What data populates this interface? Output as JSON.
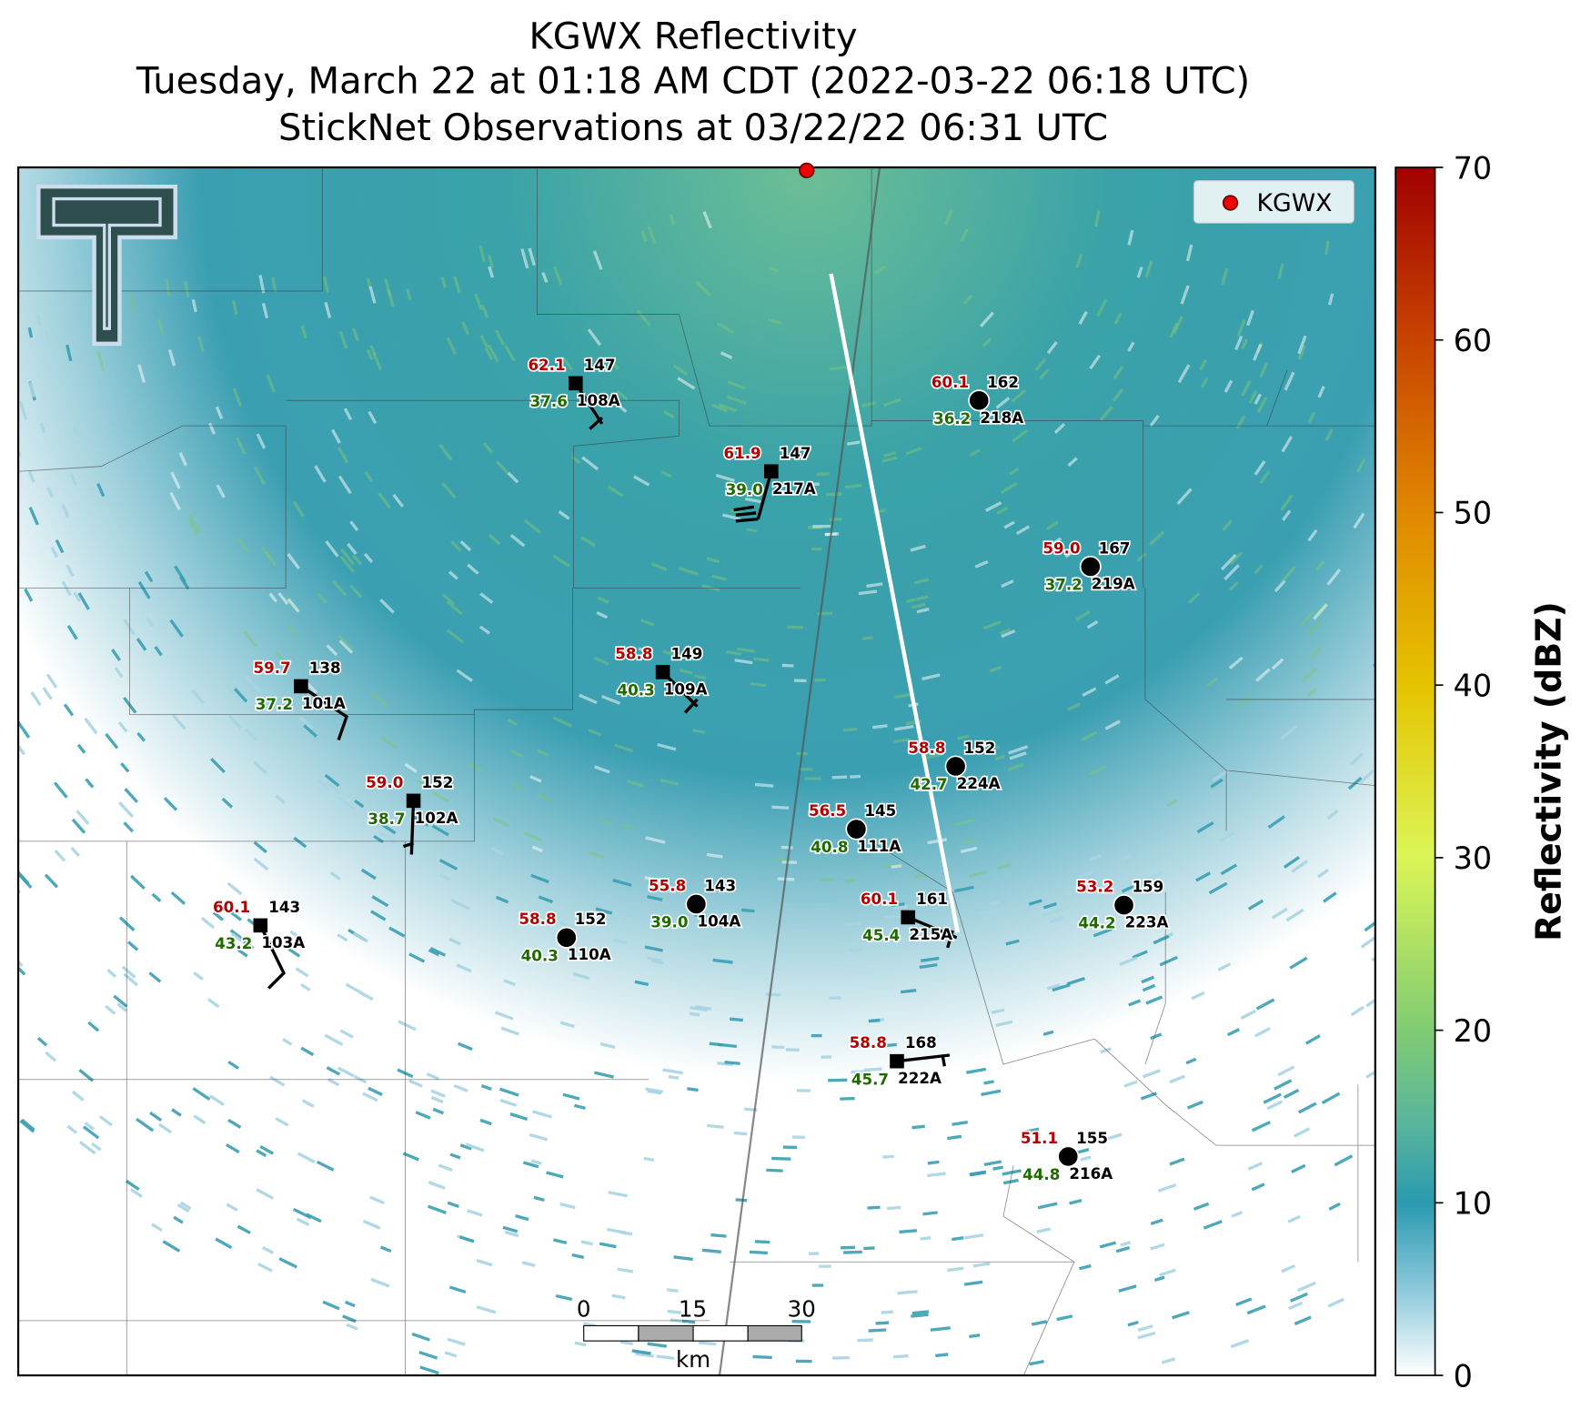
{
  "title_lines": [
    "KGWX Reflectivity",
    "Tuesday, March 22 at 01:18 AM CDT (2022-03-22 06:18 UTC)",
    "StickNet Observations at 03/22/22 06:31 UTC"
  ],
  "legend": "KGWX",
  "colorbar": {
    "label": "Reflectivity (dBZ)",
    "range": [
      0,
      70
    ],
    "ticks": [
      0,
      10,
      20,
      30,
      40,
      50,
      60,
      70
    ]
  },
  "scale_bar": {
    "ticks": [
      0,
      15,
      30
    ],
    "unit": "km"
  },
  "stations": [
    {
      "id": "108A",
      "temperature": "62.1",
      "dewpoint": "37.6",
      "number": "147"
    },
    {
      "id": "218A",
      "temperature": "60.1",
      "dewpoint": "36.2",
      "number": "162"
    },
    {
      "id": "217A",
      "temperature": "61.9",
      "dewpoint": "39.0",
      "number": "147"
    },
    {
      "id": "219A",
      "temperature": "59.0",
      "dewpoint": "37.2",
      "number": "167"
    },
    {
      "id": "109A",
      "temperature": "58.8",
      "dewpoint": "40.3",
      "number": "149"
    },
    {
      "id": "101A",
      "temperature": "59.7",
      "dewpoint": "37.2",
      "number": "138"
    },
    {
      "id": "224A",
      "temperature": "58.8",
      "dewpoint": "42.7",
      "number": "152"
    },
    {
      "id": "102A",
      "temperature": "59.0",
      "dewpoint": "38.7",
      "number": "152"
    },
    {
      "id": "111A",
      "temperature": "56.5",
      "dewpoint": "40.8",
      "number": "145"
    },
    {
      "id": "104A",
      "temperature": "55.8",
      "dewpoint": "39.0",
      "number": "143"
    },
    {
      "id": "223A",
      "temperature": "53.2",
      "dewpoint": "44.2",
      "number": "159"
    },
    {
      "id": "215A",
      "temperature": "60.1",
      "dewpoint": "45.4",
      "number": "161"
    },
    {
      "id": "103A",
      "temperature": "60.1",
      "dewpoint": "43.2",
      "number": "143"
    },
    {
      "id": "110A",
      "temperature": "58.8",
      "dewpoint": "40.3",
      "number": "152"
    },
    {
      "id": "222A",
      "temperature": "58.8",
      "dewpoint": "45.7",
      "number": "168"
    },
    {
      "id": "216A",
      "temperature": "51.1",
      "dewpoint": "44.8",
      "number": "155"
    }
  ]
}
